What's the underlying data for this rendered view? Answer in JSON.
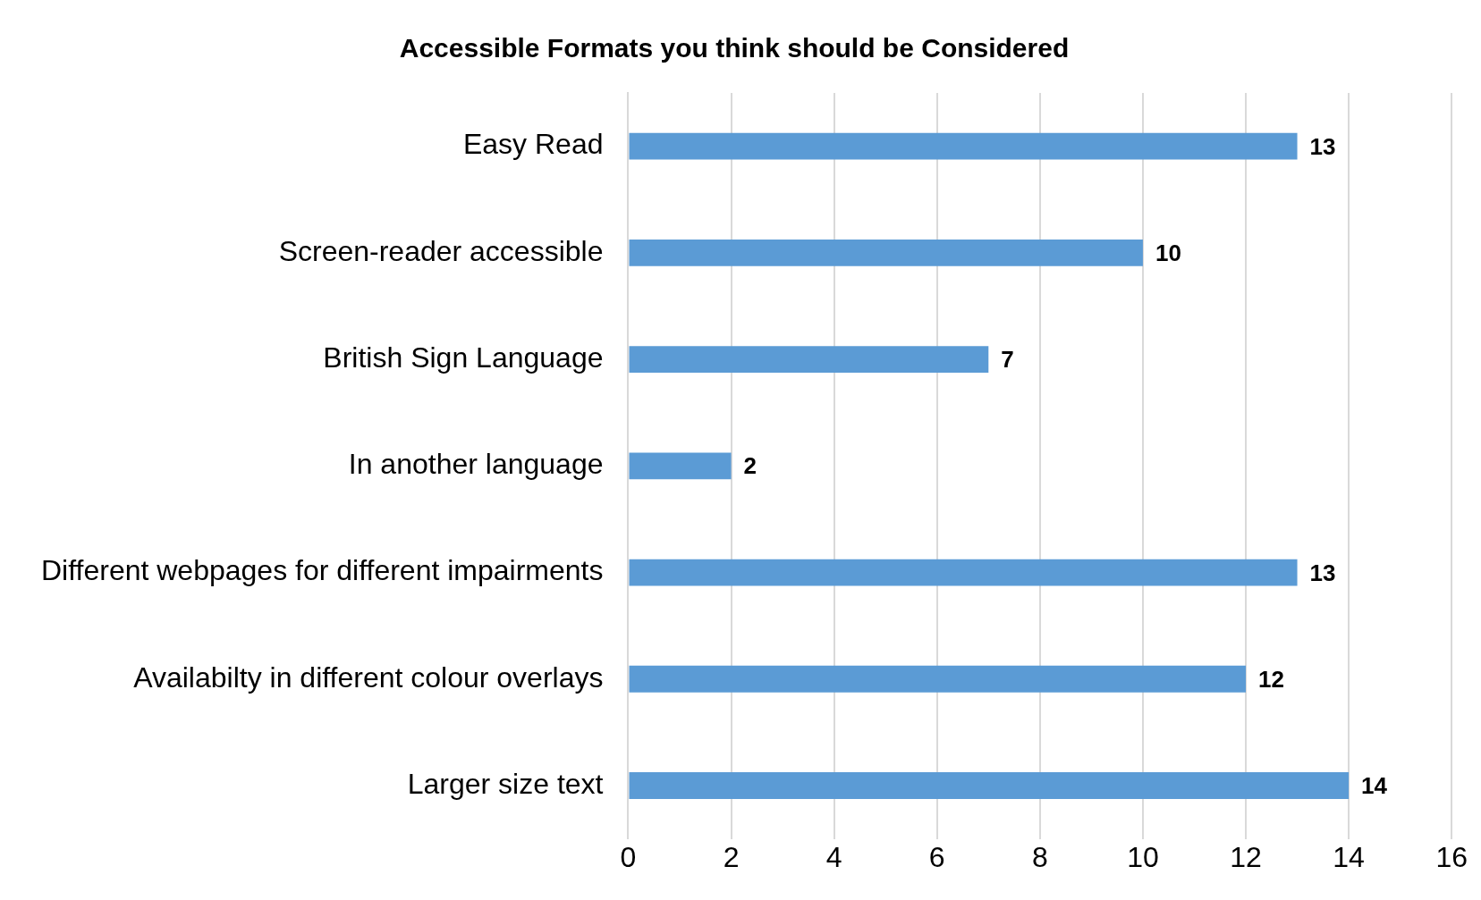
{
  "chart_data": {
    "type": "bar",
    "orientation": "horizontal",
    "title": "Accessible Formats you think should be Considered",
    "categories": [
      "Easy Read",
      "Screen-reader accessible",
      "British Sign Language",
      "In another language",
      "Different webpages for different impairments",
      "Availabilty in different colour overlays",
      "Larger size text"
    ],
    "values": [
      13,
      10,
      7,
      2,
      13,
      12,
      14
    ],
    "color": "#5b9bd5",
    "xlim": [
      0,
      16
    ],
    "xticks": [
      0,
      2,
      4,
      6,
      8,
      10,
      12,
      14,
      16
    ],
    "grid": "x",
    "data_labels": true,
    "legend": false
  }
}
